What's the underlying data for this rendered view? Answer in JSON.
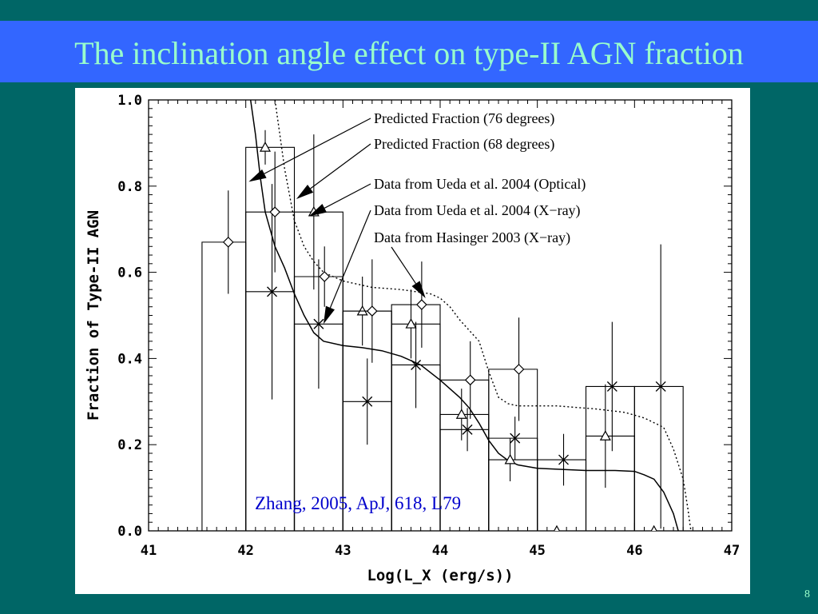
{
  "slide": {
    "title": "The inclination angle effect on type-II AGN fraction",
    "page_number": "8",
    "background_color": "#006666",
    "title_bar_color": "#3366ff",
    "title_text_color": "#99ffcc"
  },
  "chart_data": {
    "type": "line",
    "title": "",
    "xlabel": "Log(L_X (erg/s))",
    "ylabel": "Fraction of Type-II AGN",
    "xlim": [
      41,
      47
    ],
    "ylim": [
      0,
      1
    ],
    "x_ticks": [
      "41",
      "42",
      "43",
      "44",
      "45",
      "46",
      "47"
    ],
    "y_ticks": [
      "0.0",
      "0.2",
      "0.4",
      "0.6",
      "0.8",
      "1.0"
    ],
    "grid": false,
    "citation": "Zhang, 2005, ApJ, 618, L79",
    "legend": [
      {
        "label": "Predicted Fraction (76 degrees)",
        "style": "solid"
      },
      {
        "label": "Predicted Fraction (68 degrees)",
        "style": "dotted"
      },
      {
        "label": "Data from Ueda et al. 2004 (Optical)",
        "marker": "triangle"
      },
      {
        "label": "Data from Ueda et al. 2004 (X−ray)",
        "marker": "x"
      },
      {
        "label": "Data from Hasinger 2003 (X−ray)",
        "marker": "diamond"
      }
    ],
    "series": [
      {
        "name": "Predicted Fraction (76 degrees)",
        "kind": "curve",
        "style": "solid",
        "points": [
          [
            42.05,
            1.0
          ],
          [
            42.1,
            0.92
          ],
          [
            42.15,
            0.82
          ],
          [
            42.2,
            0.74
          ],
          [
            42.3,
            0.66
          ],
          [
            42.4,
            0.61
          ],
          [
            42.5,
            0.55
          ],
          [
            42.6,
            0.5
          ],
          [
            42.7,
            0.46
          ],
          [
            42.8,
            0.44
          ],
          [
            43.0,
            0.43
          ],
          [
            43.2,
            0.425
          ],
          [
            43.4,
            0.418
          ],
          [
            43.6,
            0.405
          ],
          [
            43.8,
            0.385
          ],
          [
            44.0,
            0.35
          ],
          [
            44.2,
            0.31
          ],
          [
            44.3,
            0.285
          ],
          [
            44.4,
            0.25
          ],
          [
            44.5,
            0.21
          ],
          [
            44.6,
            0.18
          ],
          [
            44.7,
            0.163
          ],
          [
            44.8,
            0.153
          ],
          [
            45.0,
            0.145
          ],
          [
            45.5,
            0.14
          ],
          [
            45.8,
            0.14
          ],
          [
            46.0,
            0.138
          ],
          [
            46.1,
            0.13
          ],
          [
            46.2,
            0.12
          ],
          [
            46.3,
            0.09
          ],
          [
            46.4,
            0.04
          ],
          [
            46.45,
            0.0
          ]
        ]
      },
      {
        "name": "Predicted Fraction (68 degrees)",
        "kind": "curve",
        "style": "dotted",
        "points": [
          [
            42.3,
            1.0
          ],
          [
            42.35,
            0.92
          ],
          [
            42.4,
            0.84
          ],
          [
            42.45,
            0.78
          ],
          [
            42.5,
            0.72
          ],
          [
            42.6,
            0.66
          ],
          [
            42.7,
            0.625
          ],
          [
            42.8,
            0.6
          ],
          [
            43.0,
            0.58
          ],
          [
            43.3,
            0.565
          ],
          [
            43.6,
            0.56
          ],
          [
            43.9,
            0.55
          ],
          [
            44.0,
            0.54
          ],
          [
            44.1,
            0.52
          ],
          [
            44.2,
            0.49
          ],
          [
            44.4,
            0.44
          ],
          [
            44.5,
            0.37
          ],
          [
            44.6,
            0.31
          ],
          [
            44.7,
            0.295
          ],
          [
            44.8,
            0.29
          ],
          [
            45.2,
            0.29
          ],
          [
            45.6,
            0.283
          ],
          [
            45.9,
            0.275
          ],
          [
            46.1,
            0.262
          ],
          [
            46.3,
            0.24
          ],
          [
            46.4,
            0.19
          ],
          [
            46.5,
            0.12
          ],
          [
            46.55,
            0.05
          ],
          [
            46.58,
            0.0
          ]
        ]
      },
      {
        "name": "Data from Ueda et al. 2004 (Optical)",
        "kind": "histogram",
        "marker": "triangle",
        "bins": [
          [
            42.0,
            42.5,
            0.89
          ],
          [
            42.5,
            43.0,
            0.74
          ],
          [
            43.0,
            43.5,
            0.51
          ],
          [
            43.5,
            44.0,
            0.48
          ],
          [
            44.0,
            44.5,
            0.27
          ],
          [
            44.5,
            45.0,
            0.165
          ],
          [
            45.0,
            45.5,
            0.0
          ],
          [
            45.5,
            46.0,
            0.22
          ],
          [
            46.0,
            46.5,
            0.0
          ]
        ],
        "points": [
          [
            42.2,
            0.89,
            0.04
          ],
          [
            42.7,
            0.74,
            0.18
          ],
          [
            43.2,
            0.51,
            0.08
          ],
          [
            43.7,
            0.48,
            0.08
          ],
          [
            44.22,
            0.27,
            0.06
          ],
          [
            44.72,
            0.165,
            0.05
          ],
          [
            45.2,
            0.0,
            0.0
          ],
          [
            45.7,
            0.22,
            0.12
          ],
          [
            46.2,
            0.0,
            0.0
          ]
        ]
      },
      {
        "name": "Data from Ueda et al. 2004 (X−ray)",
        "kind": "histogram",
        "marker": "x",
        "bins": [
          [
            42.0,
            42.5,
            0.555
          ],
          [
            42.5,
            43.0,
            0.48
          ],
          [
            43.0,
            43.5,
            0.3
          ],
          [
            43.5,
            44.0,
            0.385
          ],
          [
            44.0,
            44.5,
            0.235
          ],
          [
            44.5,
            45.0,
            0.215
          ],
          [
            45.0,
            45.5,
            0.165
          ],
          [
            45.5,
            46.0,
            0.335
          ],
          [
            46.0,
            46.5,
            0.335
          ]
        ],
        "points": [
          [
            42.27,
            0.555,
            0.25
          ],
          [
            42.75,
            0.48,
            0.15
          ],
          [
            43.25,
            0.3,
            0.1
          ],
          [
            43.75,
            0.385,
            0.1
          ],
          [
            44.28,
            0.235,
            0.05
          ],
          [
            44.77,
            0.215,
            0.05
          ],
          [
            45.27,
            0.165,
            0.06
          ],
          [
            45.77,
            0.335,
            0.15
          ],
          [
            46.27,
            0.335,
            0.33
          ]
        ]
      },
      {
        "name": "Data from Hasinger 2003 (X−ray)",
        "kind": "histogram",
        "marker": "diamond",
        "bins": [
          [
            41.55,
            42.0,
            0.67
          ],
          [
            42.0,
            42.5,
            0.74
          ],
          [
            42.5,
            43.0,
            0.59
          ],
          [
            43.0,
            43.5,
            0.51
          ],
          [
            43.5,
            44.0,
            0.525
          ],
          [
            44.0,
            44.5,
            0.35
          ],
          [
            44.5,
            45.0,
            0.375
          ]
        ],
        "points": [
          [
            41.82,
            0.67,
            0.12
          ],
          [
            42.3,
            0.74,
            0.14
          ],
          [
            42.81,
            0.59,
            0.07
          ],
          [
            43.3,
            0.51,
            0.12
          ],
          [
            43.81,
            0.525,
            0.1
          ],
          [
            44.31,
            0.35,
            0.09
          ],
          [
            44.81,
            0.375,
            0.12
          ]
        ]
      }
    ],
    "arrows": [
      {
        "from_label": 0,
        "to": [
          42.03,
          0.81
        ]
      },
      {
        "from_label": 1,
        "to": [
          42.52,
          0.77
        ]
      },
      {
        "from_label": 2,
        "to": [
          42.65,
          0.73
        ]
      },
      {
        "from_label": 3,
        "to": [
          42.8,
          0.48
        ]
      },
      {
        "from_label": 4,
        "to": [
          43.85,
          0.54
        ]
      }
    ]
  }
}
